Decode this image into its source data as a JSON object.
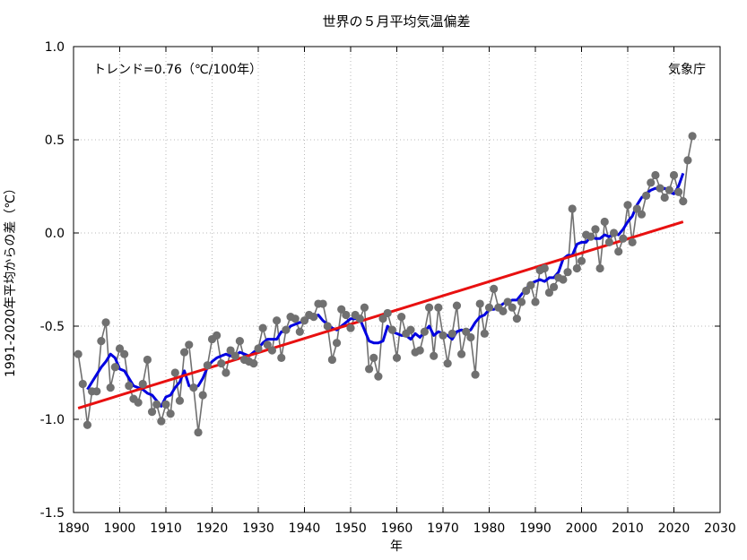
{
  "chart_data": {
    "type": "line",
    "title": "世界の５月平均気温偏差",
    "xlabel": "年",
    "ylabel": "1991-2020年平均からの差（℃）",
    "xlim": [
      1890,
      2030
    ],
    "ylim": [
      -1.5,
      1.0
    ],
    "x_ticks": [
      "1890",
      "1900",
      "1910",
      "1920",
      "1930",
      "1940",
      "1950",
      "1960",
      "1970",
      "1980",
      "1990",
      "2000",
      "2010",
      "2020",
      "2030"
    ],
    "y_ticks": [
      "1.0",
      "0.5",
      "0.0",
      "-0.5",
      "-1.0",
      "-1.5"
    ],
    "grid": true,
    "annotations": {
      "trend_label": "トレンド=0.76（℃/100年）",
      "source_label": "気象庁"
    },
    "colors": {
      "annual": "#707070",
      "moving_average": "#0000e0",
      "trend": "#e81010",
      "grid": "#b8b8b8"
    },
    "series": [
      {
        "key": "annual",
        "x": [
          1891,
          1892,
          1893,
          1894,
          1895,
          1896,
          1897,
          1898,
          1899,
          1900,
          1901,
          1902,
          1903,
          1904,
          1905,
          1906,
          1907,
          1908,
          1909,
          1910,
          1911,
          1912,
          1913,
          1914,
          1915,
          1916,
          1917,
          1918,
          1919,
          1920,
          1921,
          1922,
          1923,
          1924,
          1925,
          1926,
          1927,
          1928,
          1929,
          1930,
          1931,
          1932,
          1933,
          1934,
          1935,
          1936,
          1937,
          1938,
          1939,
          1940,
          1941,
          1942,
          1943,
          1944,
          1945,
          1946,
          1947,
          1948,
          1949,
          1950,
          1951,
          1952,
          1953,
          1954,
          1955,
          1956,
          1957,
          1958,
          1959,
          1960,
          1961,
          1962,
          1963,
          1964,
          1965,
          1966,
          1967,
          1968,
          1969,
          1970,
          1971,
          1972,
          1973,
          1974,
          1975,
          1976,
          1977,
          1978,
          1979,
          1980,
          1981,
          1982,
          1983,
          1984,
          1985,
          1986,
          1987,
          1988,
          1989,
          1990,
          1991,
          1992,
          1993,
          1994,
          1995,
          1996,
          1997,
          1998,
          1999,
          2000,
          2001,
          2002,
          2003,
          2004,
          2005,
          2006,
          2007,
          2008,
          2009,
          2010,
          2011,
          2012,
          2013,
          2014,
          2015,
          2016,
          2017,
          2018,
          2019,
          2020,
          2021,
          2022,
          2023,
          2024
        ],
        "y": [
          -0.65,
          -0.81,
          -1.03,
          -0.85,
          -0.85,
          -0.58,
          -0.48,
          -0.83,
          -0.72,
          -0.62,
          -0.65,
          -0.82,
          -0.89,
          -0.91,
          -0.81,
          -0.68,
          -0.96,
          -0.92,
          -1.01,
          -0.92,
          -0.97,
          -0.75,
          -0.9,
          -0.64,
          -0.6,
          -0.83,
          -1.07,
          -0.87,
          -0.71,
          -0.57,
          -0.55,
          -0.7,
          -0.75,
          -0.63,
          -0.66,
          -0.58,
          -0.68,
          -0.69,
          -0.7,
          -0.62,
          -0.51,
          -0.6,
          -0.63,
          -0.47,
          -0.67,
          -0.52,
          -0.45,
          -0.46,
          -0.53,
          -0.47,
          -0.44,
          -0.45,
          -0.38,
          -0.38,
          -0.5,
          -0.68,
          -0.59,
          -0.41,
          -0.44,
          -0.51,
          -0.44,
          -0.46,
          -0.4,
          -0.73,
          -0.67,
          -0.77,
          -0.46,
          -0.43,
          -0.52,
          -0.67,
          -0.45,
          -0.54,
          -0.52,
          -0.64,
          -0.63,
          -0.53,
          -0.4,
          -0.66,
          -0.4,
          -0.55,
          -0.7,
          -0.54,
          -0.39,
          -0.65,
          -0.53,
          -0.56,
          -0.76,
          -0.38,
          -0.54,
          -0.4,
          -0.3,
          -0.4,
          -0.42,
          -0.37,
          -0.4,
          -0.46,
          -0.37,
          -0.31,
          -0.28,
          -0.37,
          -0.2,
          -0.19,
          -0.32,
          -0.29,
          -0.24,
          -0.25,
          -0.21,
          0.13,
          -0.19,
          -0.15,
          -0.01,
          -0.02,
          0.02,
          -0.19,
          0.06,
          -0.05,
          0.0,
          -0.1,
          -0.03,
          0.15,
          -0.05,
          0.13,
          0.1,
          0.2,
          0.27,
          0.31,
          0.24,
          0.19,
          0.23,
          0.31,
          0.22,
          0.17,
          0.39,
          0.52
        ]
      },
      {
        "key": "moving_average",
        "x": [
          1893,
          1894,
          1895,
          1896,
          1897,
          1898,
          1899,
          1900,
          1901,
          1902,
          1903,
          1904,
          1905,
          1906,
          1907,
          1908,
          1909,
          1910,
          1911,
          1912,
          1913,
          1914,
          1915,
          1916,
          1917,
          1918,
          1919,
          1920,
          1921,
          1922,
          1923,
          1924,
          1925,
          1926,
          1927,
          1928,
          1929,
          1930,
          1931,
          1932,
          1933,
          1934,
          1935,
          1936,
          1937,
          1938,
          1939,
          1940,
          1941,
          1942,
          1943,
          1944,
          1945,
          1946,
          1947,
          1948,
          1949,
          1950,
          1951,
          1952,
          1953,
          1954,
          1955,
          1956,
          1957,
          1958,
          1959,
          1960,
          1961,
          1962,
          1963,
          1964,
          1965,
          1966,
          1967,
          1968,
          1969,
          1970,
          1971,
          1972,
          1973,
          1974,
          1975,
          1976,
          1977,
          1978,
          1979,
          1980,
          1981,
          1982,
          1983,
          1984,
          1985,
          1986,
          1987,
          1988,
          1989,
          1990,
          1991,
          1992,
          1993,
          1994,
          1995,
          1996,
          1997,
          1998,
          1999,
          2000,
          2001,
          2002,
          2003,
          2004,
          2005,
          2006,
          2007,
          2008,
          2009,
          2010,
          2011,
          2012,
          2013,
          2014,
          2015,
          2016,
          2017,
          2018,
          2019,
          2020,
          2021,
          2022
        ],
        "y": [
          -0.84,
          -0.8,
          -0.76,
          -0.72,
          -0.69,
          -0.65,
          -0.67,
          -0.73,
          -0.74,
          -0.78,
          -0.82,
          -0.83,
          -0.84,
          -0.86,
          -0.87,
          -0.9,
          -0.93,
          -0.88,
          -0.87,
          -0.83,
          -0.8,
          -0.74,
          -0.82,
          -0.83,
          -0.82,
          -0.78,
          -0.72,
          -0.69,
          -0.67,
          -0.66,
          -0.65,
          -0.66,
          -0.66,
          -0.64,
          -0.65,
          -0.66,
          -0.64,
          -0.62,
          -0.59,
          -0.57,
          -0.57,
          -0.57,
          -0.53,
          -0.53,
          -0.5,
          -0.49,
          -0.48,
          -0.48,
          -0.45,
          -0.45,
          -0.44,
          -0.47,
          -0.49,
          -0.51,
          -0.52,
          -0.5,
          -0.48,
          -0.46,
          -0.46,
          -0.46,
          -0.52,
          -0.58,
          -0.59,
          -0.59,
          -0.58,
          -0.5,
          -0.53,
          -0.54,
          -0.55,
          -0.55,
          -0.57,
          -0.54,
          -0.56,
          -0.53,
          -0.5,
          -0.55,
          -0.53,
          -0.54,
          -0.55,
          -0.57,
          -0.53,
          -0.52,
          -0.53,
          -0.52,
          -0.48,
          -0.45,
          -0.44,
          -0.41,
          -0.41,
          -0.4,
          -0.38,
          -0.37,
          -0.36,
          -0.36,
          -0.33,
          -0.3,
          -0.27,
          -0.26,
          -0.25,
          -0.26,
          -0.24,
          -0.24,
          -0.21,
          -0.14,
          -0.12,
          -0.12,
          -0.06,
          -0.05,
          -0.05,
          -0.02,
          -0.03,
          -0.03,
          -0.01,
          -0.02,
          0.0,
          -0.01,
          0.02,
          0.06,
          0.09,
          0.15,
          0.19,
          0.21,
          0.23,
          0.24,
          0.23,
          0.24,
          0.22,
          0.21,
          0.25,
          0.32
        ]
      },
      {
        "key": "trend",
        "x": [
          1891,
          2022
        ],
        "y": [
          -0.94,
          0.06
        ]
      }
    ]
  }
}
